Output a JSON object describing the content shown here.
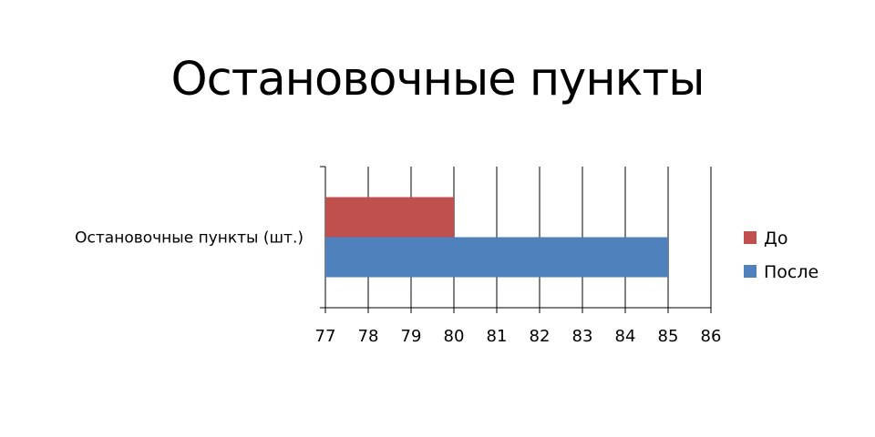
{
  "slide": {
    "title": "Остановочные пункты"
  },
  "chart_data": {
    "type": "bar",
    "orientation": "horizontal",
    "title": "Остановочные пункты",
    "categories": [
      "Остановочные пункты (шт.)"
    ],
    "series": [
      {
        "name": "До",
        "values": [
          80
        ],
        "color": "#C0504D"
      },
      {
        "name": "После",
        "values": [
          85
        ],
        "color": "#4F81BD"
      }
    ],
    "xlim": [
      77,
      86
    ],
    "xticks": [
      77,
      78,
      79,
      80,
      81,
      82,
      83,
      84,
      85,
      86
    ],
    "xlabel": "",
    "ylabel": "",
    "grid": true,
    "legend_position": "right"
  }
}
